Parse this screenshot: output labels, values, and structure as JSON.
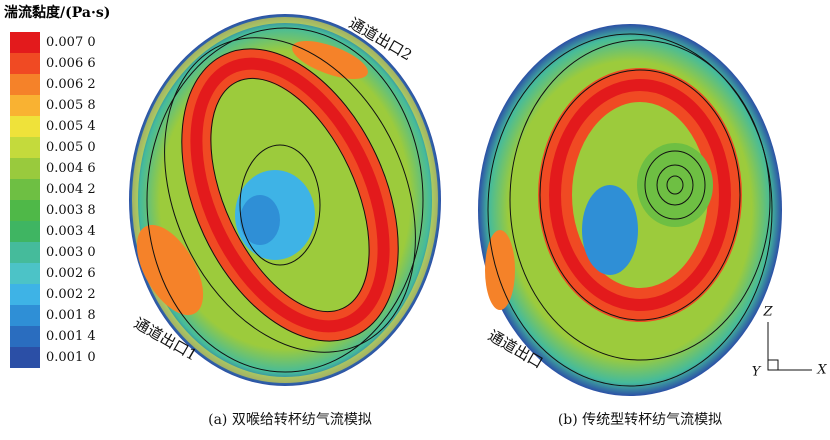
{
  "legend": {
    "title": "湍流黏度/(Pa·s)",
    "items": [
      {
        "label": "0.007 0",
        "color": "#e31a1c"
      },
      {
        "label": "0.006 6",
        "color": "#f04a23"
      },
      {
        "label": "0.006 2",
        "color": "#f58229"
      },
      {
        "label": "0.005 8",
        "color": "#f9b232"
      },
      {
        "label": "0.005 4",
        "color": "#efe23a"
      },
      {
        "label": "0.005 0",
        "color": "#c4da3c"
      },
      {
        "label": "0.004 6",
        "color": "#99ca3d"
      },
      {
        "label": "0.004 2",
        "color": "#6ebf43"
      },
      {
        "label": "0.003 8",
        "color": "#4fb848"
      },
      {
        "label": "0.003 4",
        "color": "#3fb562"
      },
      {
        "label": "0.003 0",
        "color": "#45bb9b"
      },
      {
        "label": "0.002 6",
        "color": "#4cc3c7"
      },
      {
        "label": "0.002 2",
        "color": "#3eb3e6"
      },
      {
        "label": "0.001 8",
        "color": "#2f8fd6"
      },
      {
        "label": "0.001 4",
        "color": "#2a6dbf"
      },
      {
        "label": "0.001 0",
        "color": "#2b4fa6"
      }
    ]
  },
  "annotations": {
    "outlet_2": "通道出口2",
    "outlet_1": "通道出口1",
    "outlet": "通道出口"
  },
  "axes": {
    "z": "Z",
    "y": "Y",
    "x": "X"
  },
  "captions": {
    "a": "(a) 双喉给转杯纺气流模拟",
    "b": "(b) 传统型转杯纺气流模拟"
  }
}
